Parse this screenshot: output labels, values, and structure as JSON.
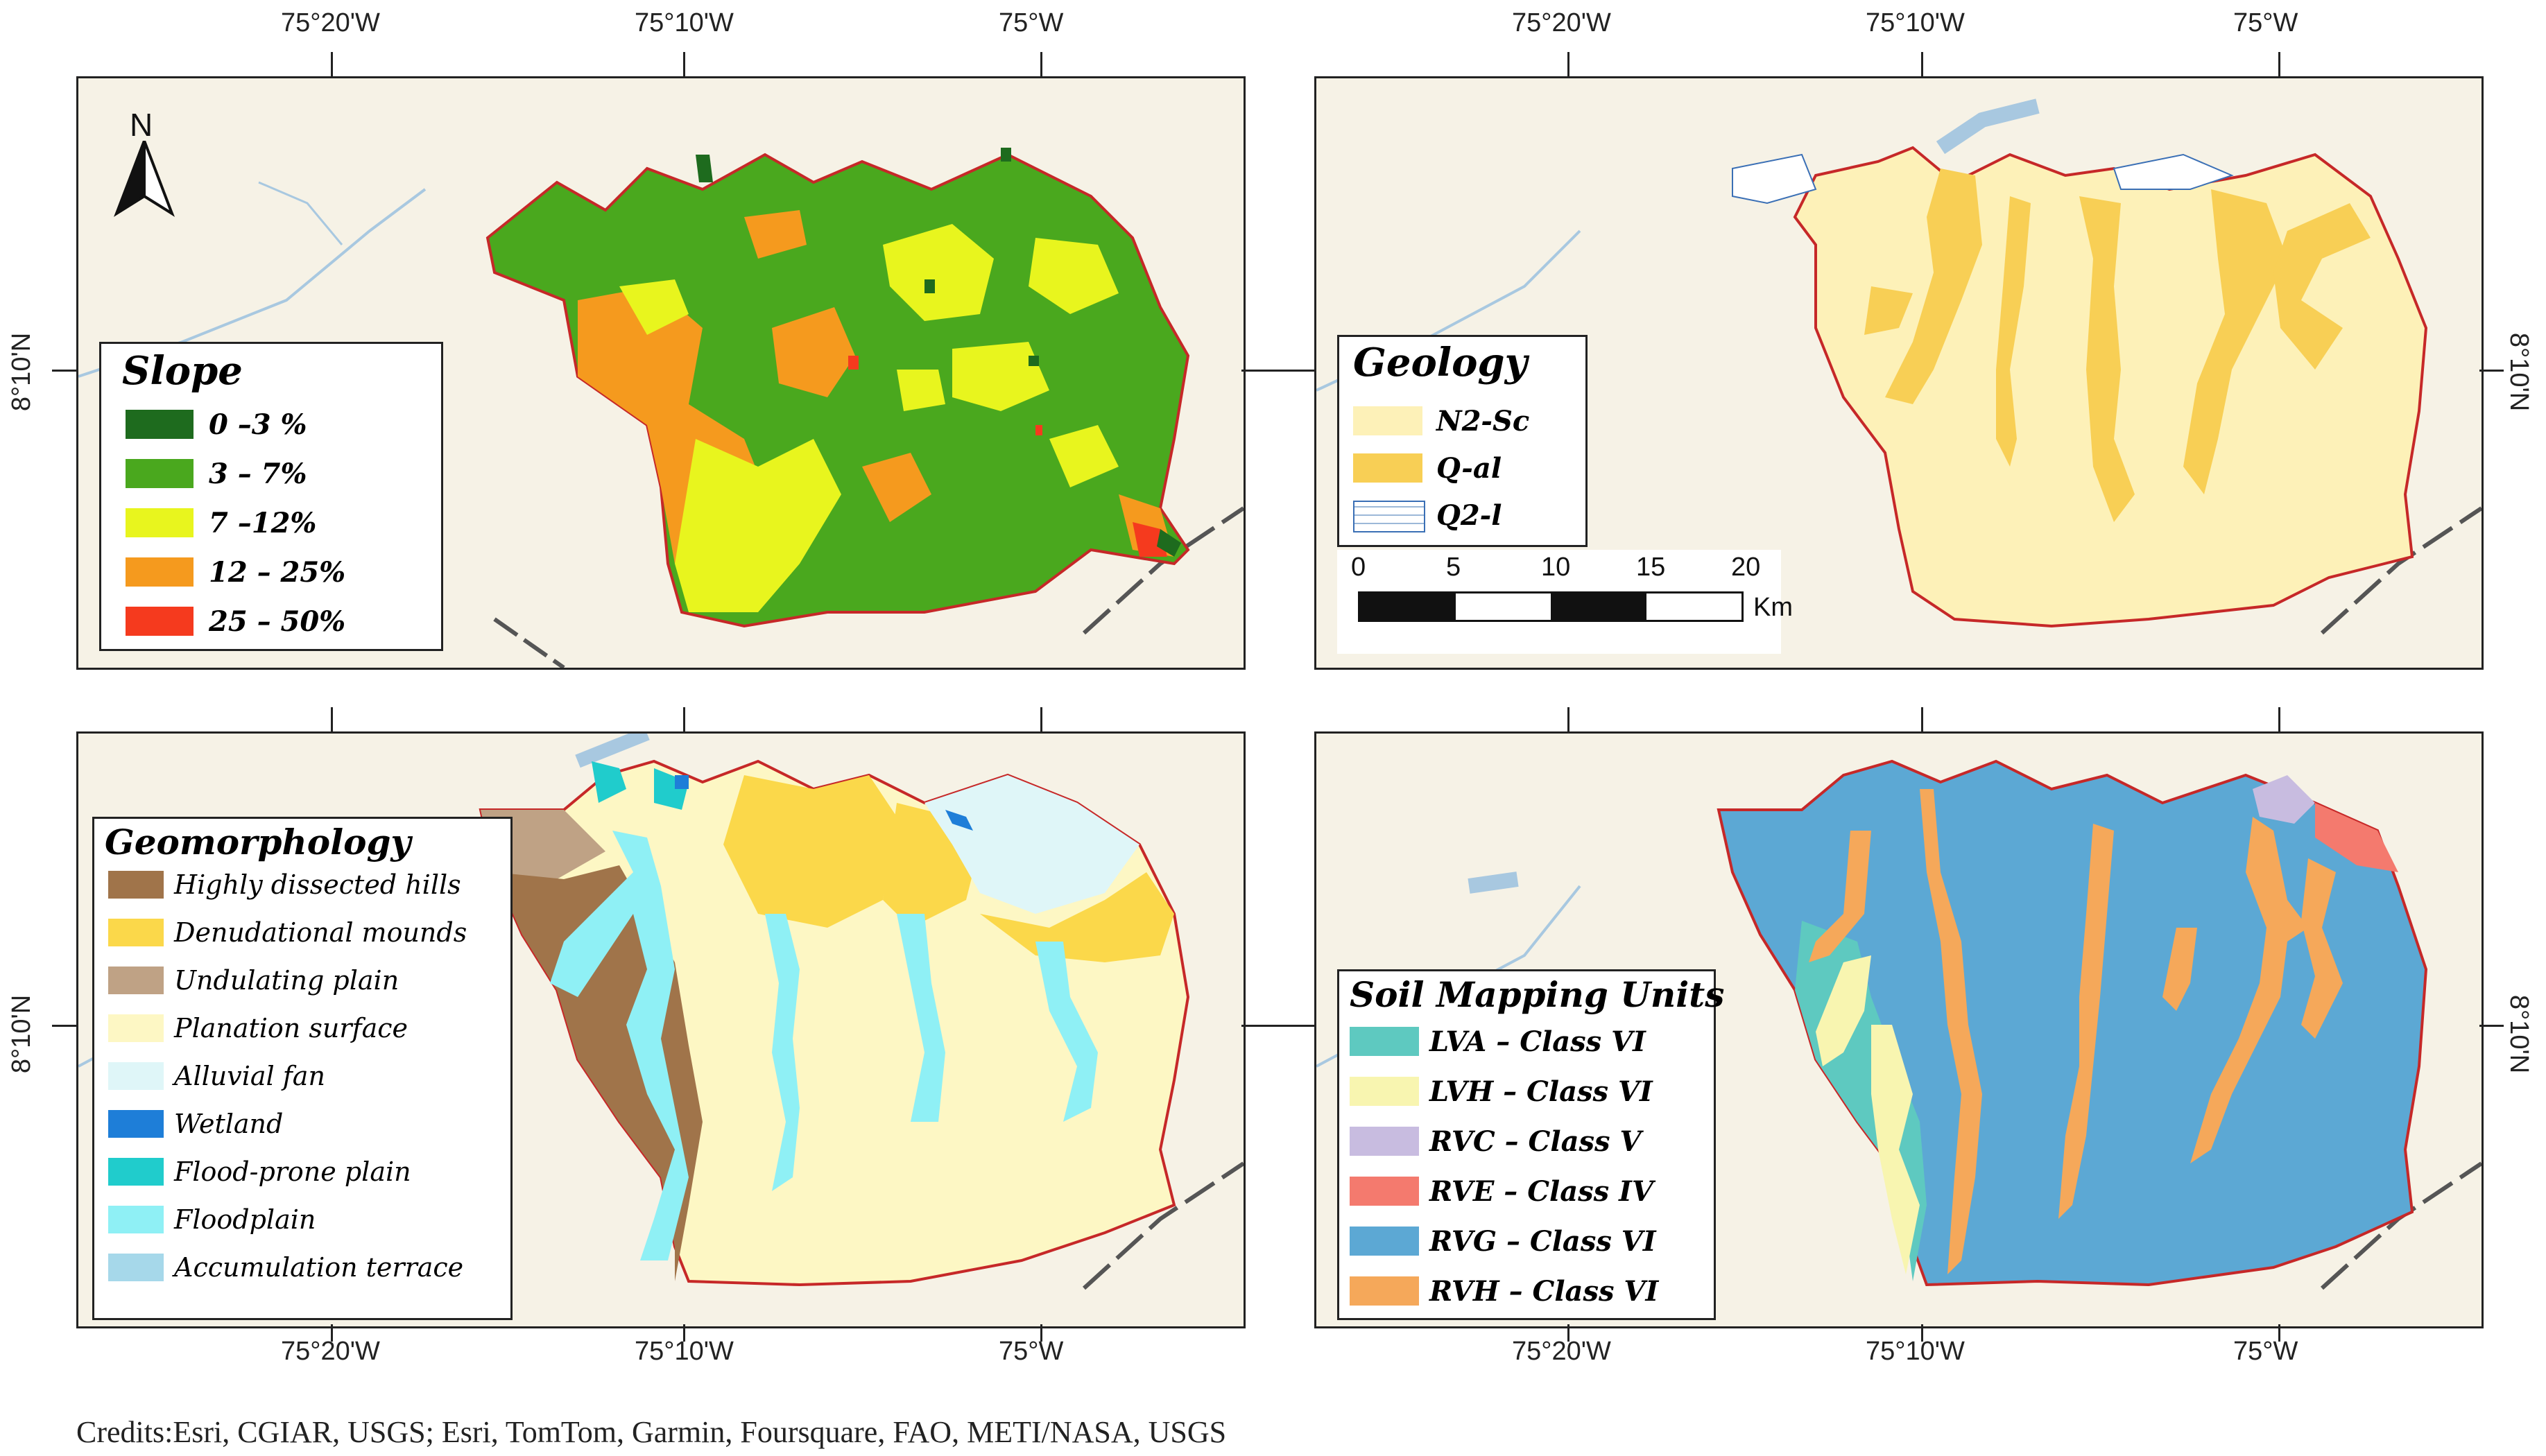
{
  "coords": {
    "top": [
      "75°20'W",
      "75°10'W",
      "75°W"
    ],
    "bottom": [
      "75°20'W",
      "75°10'W",
      "75°W"
    ],
    "lat": "8°10'N"
  },
  "slope": {
    "title": "Slope",
    "items": [
      {
        "label": "0 –3 %",
        "color": "#1e6b1e"
      },
      {
        "label": "3 – 7%",
        "color": "#4aa81e"
      },
      {
        "label": "7 –12%",
        "color": "#e8f51e"
      },
      {
        "label": "12 – 25%",
        "color": "#f59a1e"
      },
      {
        "label": "25 – 50%",
        "color": "#f53a1e"
      }
    ],
    "north": "N"
  },
  "geology": {
    "title": "Geology",
    "items": [
      {
        "label": "N2-Sc",
        "color": "#fdf1b8"
      },
      {
        "label": "Q-al",
        "color": "#f8cf55"
      },
      {
        "label": "Q2-l",
        "color": "#ffffff"
      }
    ],
    "scale": {
      "ticks": [
        "0",
        "5",
        "10",
        "15",
        "20"
      ],
      "unit": "Km"
    }
  },
  "geomorphology": {
    "title": "Geomorphology",
    "items": [
      {
        "label": "Highly dissected hills",
        "color": "#a0744a"
      },
      {
        "label": "Denudational mounds",
        "color": "#fbd84a"
      },
      {
        "label": "Undulating plain",
        "color": "#bfa285"
      },
      {
        "label": "Planation surface",
        "color": "#fdf7c4"
      },
      {
        "label": "Alluvial fan",
        "color": "#dff6f8"
      },
      {
        "label": "Wetland",
        "color": "#1e7ed8"
      },
      {
        "label": "Flood-prone plain",
        "color": "#20cccc"
      },
      {
        "label": "Floodplain",
        "color": "#8ff0f5"
      },
      {
        "label": "Accumulation terrace",
        "color": "#a6d8ea"
      }
    ]
  },
  "soil": {
    "title": "Soil Mapping Units",
    "items": [
      {
        "label": "LVA – Class VI",
        "color": "#5ec9c0"
      },
      {
        "label": "LVH – Class VI",
        "color": "#f8f5b0"
      },
      {
        "label": "RVC  – Class V",
        "color": "#c8bce0"
      },
      {
        "label": "RVE – Class IV",
        "color": "#f47a6e"
      },
      {
        "label": "RVG – Class VI",
        "color": "#5ca8d4"
      },
      {
        "label": "RVH – Class VI",
        "color": "#f5a85a"
      }
    ]
  },
  "credits": "Credits:Esri, CGIAR, USGS; Esri, TomTom, Garmin, Foursquare, FAO, METI/NASA, USGS"
}
